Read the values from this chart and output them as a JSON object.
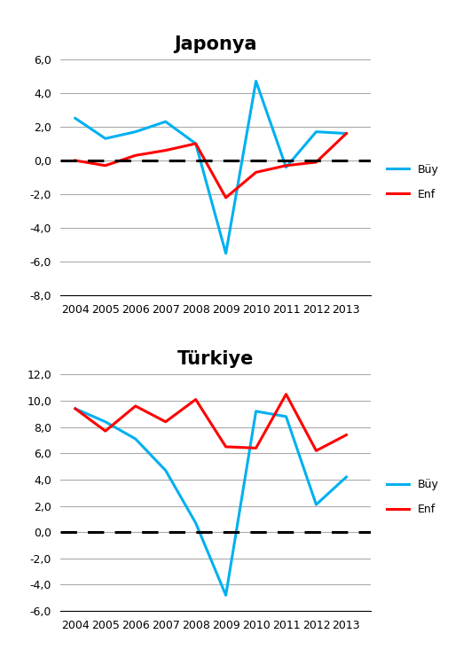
{
  "years": [
    2004,
    2005,
    2006,
    2007,
    2008,
    2009,
    2010,
    2011,
    2012,
    2013
  ],
  "japonya": {
    "title": "Japonya",
    "buy": [
      2.5,
      1.3,
      1.7,
      2.3,
      1.0,
      -5.5,
      4.7,
      -0.4,
      1.7,
      1.6
    ],
    "enf": [
      0.0,
      -0.3,
      0.3,
      0.6,
      1.0,
      -2.2,
      -0.7,
      -0.3,
      -0.1,
      1.6
    ],
    "ylim": [
      -8.0,
      6.0
    ],
    "yticks": [
      -8.0,
      -6.0,
      -4.0,
      -2.0,
      0.0,
      2.0,
      4.0,
      6.0
    ]
  },
  "turkiye": {
    "title": "Türkiye",
    "buy": [
      9.4,
      8.4,
      7.1,
      4.7,
      0.7,
      -4.8,
      9.2,
      8.8,
      2.1,
      4.2
    ],
    "enf": [
      9.4,
      7.7,
      9.6,
      8.4,
      10.1,
      6.5,
      6.4,
      10.5,
      6.2,
      7.4
    ],
    "ylim": [
      -6.0,
      12.0
    ],
    "yticks": [
      -6.0,
      -4.0,
      -2.0,
      0.0,
      2.0,
      4.0,
      6.0,
      8.0,
      10.0,
      12.0
    ]
  },
  "buy_color": "#00B0F0",
  "enf_color": "#FF0000",
  "buy_label": "Büy",
  "enf_label": "Enf",
  "line_width": 2.2,
  "background_color": "#FFFFFF",
  "grid_color": "#AAAAAA",
  "title_fontsize": 15,
  "tick_fontsize": 9,
  "legend_fontsize": 9
}
